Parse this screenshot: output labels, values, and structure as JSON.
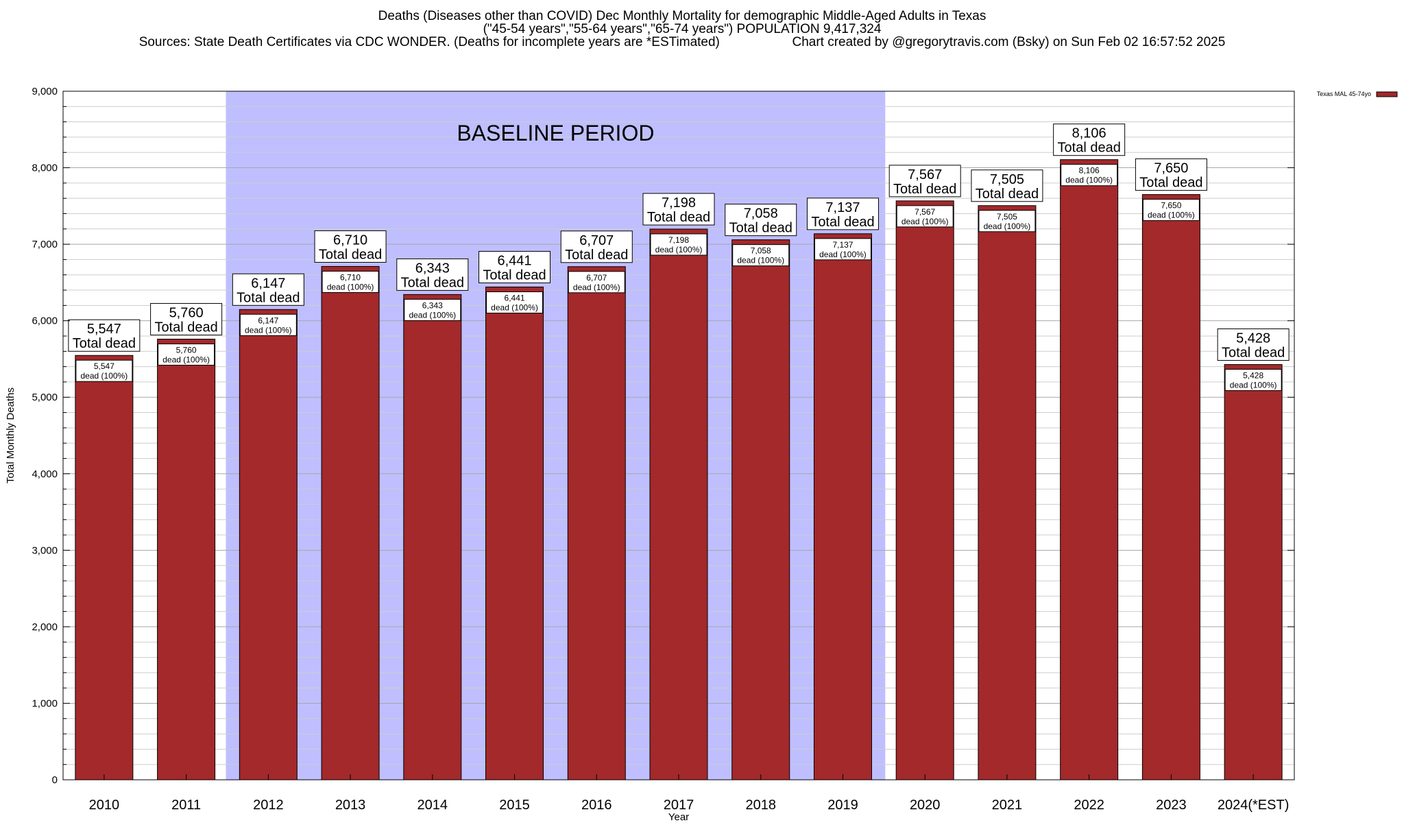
{
  "chart_data": {
    "type": "bar",
    "title": "Deaths (Diseases other than COVID) Dec Monthly Mortality for demographic Middle-Aged Adults in Texas",
    "subtitle": "(\"45-54 years\",\"55-64 years\",\"65-74 years\") POPULATION 9,417,324",
    "sources": "Sources: State Death Certificates via CDC WONDER. (Deaths for incomplete years are *ESTimated)",
    "credit": "Chart created by @gregorytravis.com (Bsky) on Sun Feb 02 16:57:52 2025",
    "xlabel": "Year",
    "ylabel": "Total Monthly Deaths",
    "ylim": [
      0,
      9000
    ],
    "yticks": [
      0,
      1000,
      2000,
      3000,
      4000,
      5000,
      6000,
      7000,
      8000,
      9000
    ],
    "ytick_labels": [
      "0",
      "1,000",
      "2,000",
      "3,000",
      "4,000",
      "5,000",
      "6,000",
      "7,000",
      "8,000",
      "9,000"
    ],
    "grid": true,
    "legend": {
      "label": "Texas MAL 45-74yo",
      "placement": "top-right",
      "color": "#a0282a"
    },
    "bar_color": "#a3292b",
    "baseline": {
      "label": "BASELINE PERIOD",
      "from": "2012",
      "to": "2019",
      "color": "#bfbfff"
    },
    "top_label_suffix": "Total dead",
    "inner_label_suffix": "dead (100%)",
    "categories": [
      "2010",
      "2011",
      "2012",
      "2013",
      "2014",
      "2015",
      "2016",
      "2017",
      "2018",
      "2019",
      "2020",
      "2021",
      "2022",
      "2023",
      "2024(*EST)"
    ],
    "values": [
      5547,
      5760,
      6147,
      6710,
      6343,
      6441,
      6707,
      7198,
      7058,
      7137,
      7567,
      7505,
      8106,
      7650,
      5428
    ],
    "value_labels": [
      "5,547",
      "5,760",
      "6,147",
      "6,710",
      "6,343",
      "6,441",
      "6,707",
      "7,198",
      "7,058",
      "7,137",
      "7,567",
      "7,505",
      "8,106",
      "7,650",
      "5,428"
    ]
  }
}
